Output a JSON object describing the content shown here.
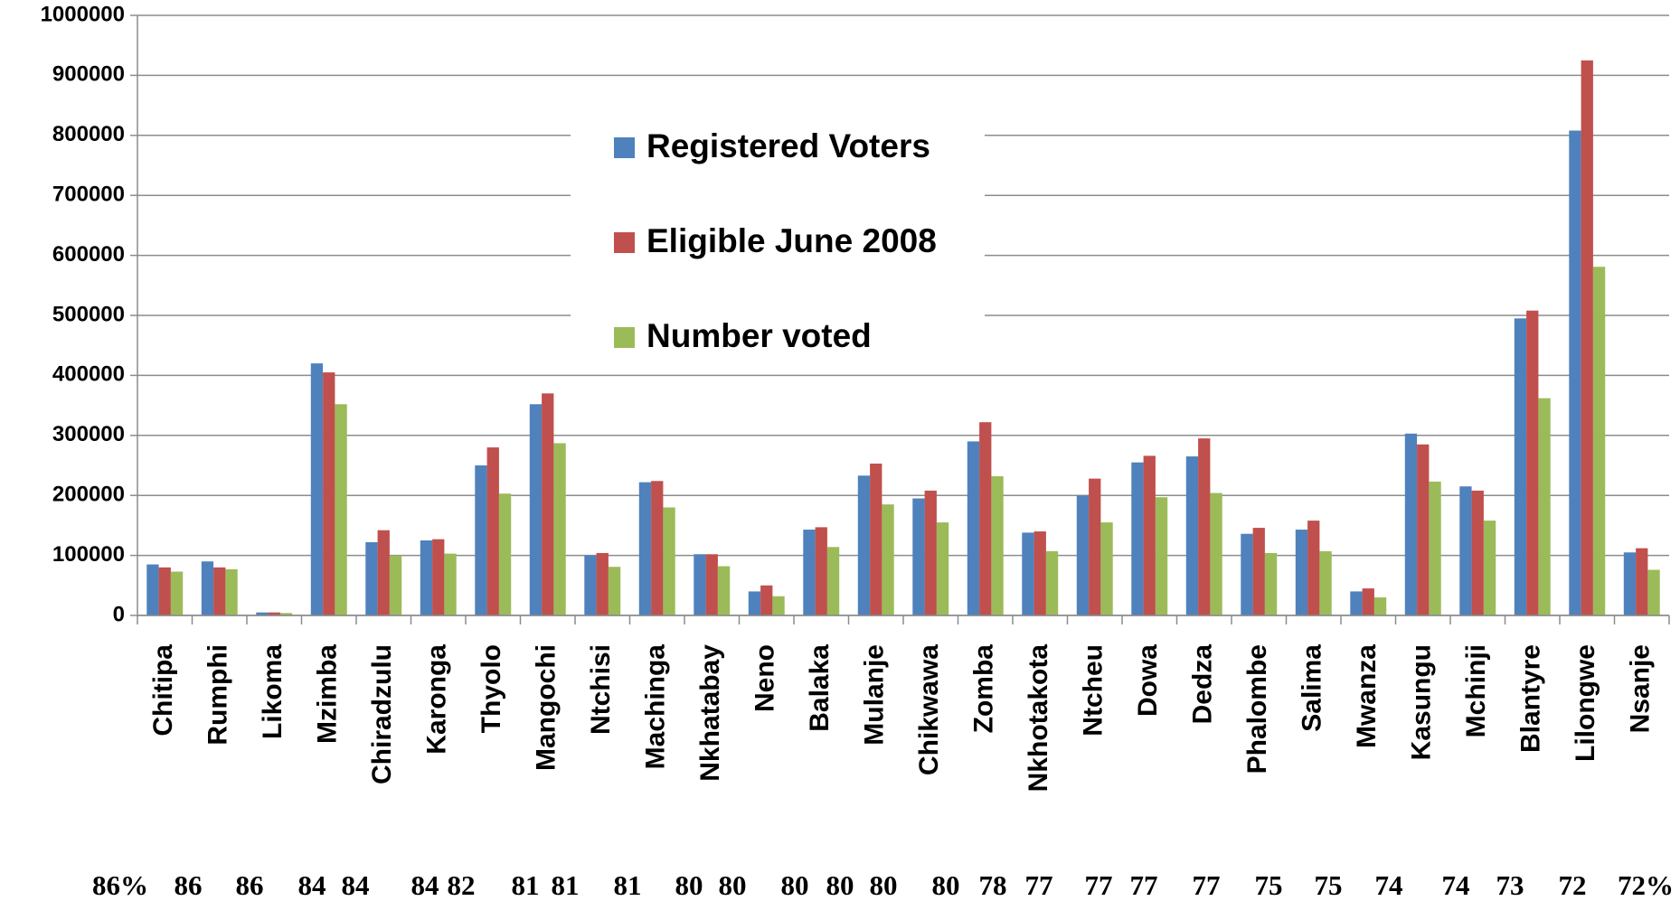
{
  "chart_data": {
    "type": "bar",
    "categories": [
      "Chitipa",
      "Rumphi",
      "Likoma",
      "Mzimba",
      "Chiradzulu",
      "Karonga",
      "Thyolo",
      "Mangochi",
      "Ntchisi",
      "Machinga",
      "Nkhatabay",
      "Neno",
      "Balaka",
      "Mulanje",
      "Chikwawa",
      "Zomba",
      "Nkhotakota",
      "Ntcheu",
      "Dowa",
      "Dedza",
      "Phalombe",
      "Salima",
      "Mwanza",
      "Kasungu",
      "Mchinji",
      "Blantyre",
      "Lilongwe",
      "Nsanje"
    ],
    "series": [
      {
        "name": "Registered Voters",
        "color": "#4f81bd",
        "values": [
          85000,
          90000,
          5000,
          420000,
          122000,
          125000,
          250000,
          352000,
          100000,
          222000,
          102000,
          40000,
          143000,
          233000,
          195000,
          290000,
          138000,
          200000,
          255000,
          265000,
          136000,
          143000,
          40000,
          303000,
          215000,
          495000,
          808000,
          105000
        ]
      },
      {
        "name": "Eligible June 2008",
        "color": "#c0504d",
        "values": [
          80000,
          80000,
          5000,
          405000,
          142000,
          127000,
          280000,
          370000,
          104000,
          224000,
          102000,
          50000,
          147000,
          253000,
          208000,
          322000,
          140000,
          228000,
          266000,
          295000,
          146000,
          158000,
          45000,
          285000,
          208000,
          508000,
          925000,
          112000
        ]
      },
      {
        "name": "Number voted",
        "color": "#9bbb59",
        "values": [
          73000,
          77000,
          4000,
          352000,
          100000,
          103000,
          203000,
          287000,
          81000,
          180000,
          82000,
          32000,
          114000,
          185000,
          155000,
          232000,
          107000,
          155000,
          197000,
          204000,
          104000,
          107000,
          30000,
          223000,
          158000,
          362000,
          581000,
          76000
        ]
      }
    ],
    "annotations": [
      "86%",
      "86",
      "86",
      "84",
      "84",
      "84",
      "82",
      "81",
      "81",
      "81",
      "80",
      "80",
      "80",
      "80",
      "80",
      "80",
      "78",
      "77",
      "77",
      "77",
      "77",
      "75",
      "75",
      "74",
      "74",
      "73",
      "72",
      "72%"
    ],
    "ylim": [
      0,
      1000000
    ],
    "yticks": [
      0,
      100000,
      200000,
      300000,
      400000,
      500000,
      600000,
      700000,
      800000,
      900000,
      1000000
    ],
    "grid": true
  }
}
